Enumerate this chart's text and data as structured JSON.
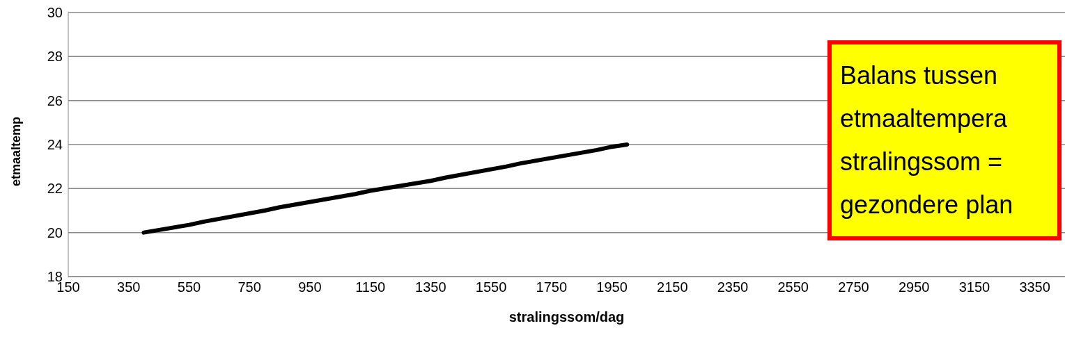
{
  "chart_data": {
    "type": "line",
    "xlabel": "stralingssom/dag",
    "ylabel": "etmaaltemp",
    "x": [
      400,
      550,
      600,
      800,
      850,
      1100,
      1150,
      1350,
      1400,
      1600,
      1650,
      1900,
      1950,
      2000
    ],
    "series": [
      {
        "color": "#000000",
        "values": [
          20,
          20.35,
          20.5,
          21,
          21.15,
          21.75,
          21.9,
          22.35,
          22.5,
          23,
          23.15,
          23.75,
          23.9,
          24
        ]
      }
    ],
    "xlim": [
      150,
      3450
    ],
    "xticks": [
      150,
      350,
      550,
      750,
      950,
      1150,
      1350,
      1550,
      1750,
      1950,
      2150,
      2350,
      2550,
      2750,
      2950,
      3150,
      3350
    ],
    "ylim": [
      18,
      30
    ],
    "yticks": [
      18,
      20,
      22,
      24,
      26,
      28,
      30
    ],
    "grid": "y",
    "marker": "none",
    "line_style": "solid",
    "annotations": [
      "Balans tussen\netmaaltempera\nstralingssom =\ngezondere plan"
    ]
  }
}
